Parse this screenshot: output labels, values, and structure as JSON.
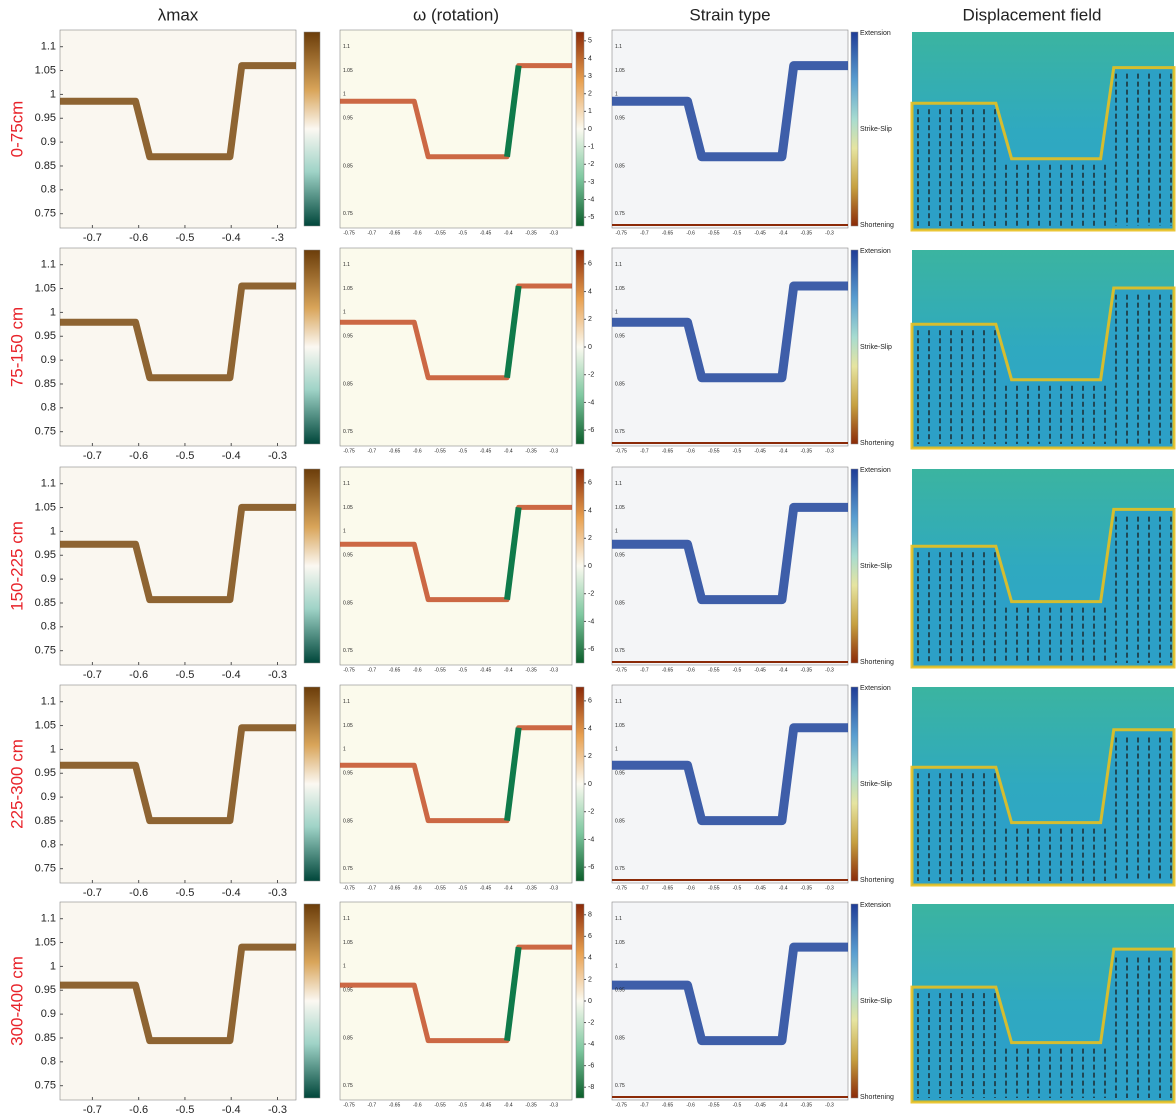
{
  "columns": [
    "λmax",
    "ω (rotation)",
    "Strain type",
    "Displacement field"
  ],
  "lambda_axes": {
    "xlim": [
      -0.77,
      -0.26
    ],
    "ylim": [
      0.72,
      1.135
    ],
    "yticks": [
      0.75,
      0.8,
      0.85,
      0.9,
      0.95,
      1,
      1.05,
      1.1
    ]
  },
  "small_axes": {
    "xlim": [
      -0.77,
      -0.26
    ],
    "ylim": [
      0.72,
      1.135
    ],
    "xticks": [
      -0.75,
      -0.7,
      -0.65,
      -0.6,
      -0.55,
      -0.5,
      -0.45,
      -0.4,
      -0.35,
      -0.3
    ],
    "yticks": [
      0.75,
      0.85,
      0.95,
      1,
      1.05,
      1.1
    ]
  },
  "strain_labels": [
    "Extension",
    "Strike-Slip",
    "Shortening"
  ],
  "rows": [
    {
      "label": "0-75cm",
      "xticks": [
        -0.7,
        -0.6,
        -0.5,
        -0.4,
        {
          "value": -0.3,
          "label": "-.3"
        }
      ],
      "omega_clim": [
        -5.5,
        5.5
      ],
      "omega_ticks": [
        5,
        4,
        3,
        2,
        1,
        0,
        -1,
        -2,
        -3,
        -4,
        -5
      ]
    },
    {
      "label": "75-150 cm",
      "xticks": [
        -0.7,
        -0.6,
        -0.5,
        -0.4,
        -0.3
      ],
      "omega_clim": [
        -7,
        7
      ],
      "omega_ticks": [
        6,
        4,
        2,
        0,
        -2,
        -4,
        -6
      ]
    },
    {
      "label": "150-225 cm",
      "xticks": [
        -0.7,
        -0.6,
        -0.5,
        -0.4,
        -0.3
      ],
      "omega_clim": [
        -7,
        7
      ],
      "omega_ticks": [
        6,
        4,
        2,
        0,
        -2,
        -4,
        -6
      ]
    },
    {
      "label": "225-300 cm",
      "xticks": [
        -0.7,
        -0.6,
        -0.5,
        -0.4,
        -0.3
      ],
      "omega_clim": [
        -7,
        7
      ],
      "omega_ticks": [
        6,
        4,
        2,
        0,
        -2,
        -4,
        -6
      ]
    },
    {
      "label": "300-400 cm",
      "xticks": [
        -0.7,
        -0.6,
        -0.5,
        -0.4,
        -0.3
      ],
      "omega_clim": [
        -9,
        9
      ],
      "omega_ticks": [
        8,
        6,
        4,
        2,
        0,
        -2,
        -4,
        -6,
        -8
      ]
    }
  ]
}
